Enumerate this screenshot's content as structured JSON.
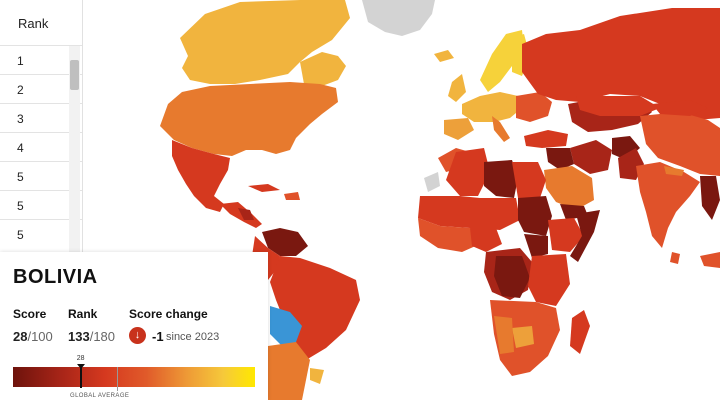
{
  "map": {
    "colors": {
      "ocean": "#ffffff",
      "no_data": "#d3d3d3",
      "very_dark": "#7a1810",
      "dark": "#a82518",
      "red": "#d5391f",
      "red_orange": "#e0522a",
      "orange": "#e77a2e",
      "light_orange": "#eda03a",
      "amber": "#f1b43e",
      "yellow": "#f6d23a",
      "highlight": "#3a95d6"
    },
    "highlighted_country": "Bolivia"
  },
  "rank_table": {
    "header": "Rank",
    "rows": [
      "1",
      "2",
      "3",
      "4",
      "5",
      "5",
      "5"
    ]
  },
  "card": {
    "country": "BOLIVIA",
    "score_label": "Score",
    "score_value": "28",
    "score_total": "/100",
    "rank_label": "Rank",
    "rank_value": "133",
    "rank_total": "/180",
    "change_label": "Score change",
    "change_icon": "arrow-down-icon",
    "change_value": "-1",
    "change_since": "since 2023",
    "scale_marker_label": "28",
    "score_fraction": 0.28,
    "average_fraction": 0.43,
    "global_average_label": "GLOBAL AVERAGE"
  }
}
